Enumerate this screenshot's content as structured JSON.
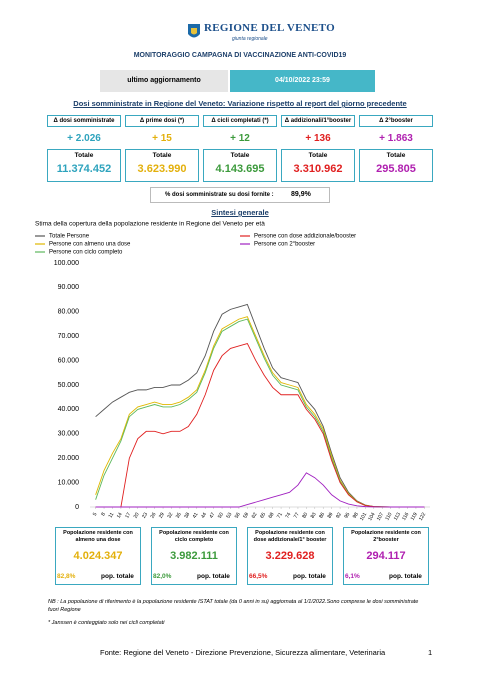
{
  "header": {
    "logo": "REGIONE DEL VENETO",
    "logo_sub": "giunta regionale",
    "title": "MONITORAGGIO CAMPAGNA DI VACCINAZIONE ANTI-COVID19",
    "update_label": "ultimo aggiornamento",
    "update_date": "04/10/2022 23:59"
  },
  "summary": {
    "title": "Dosi somministrate in Regione del Veneto: Variazione rispetto al report del giorno precedente",
    "cards": [
      {
        "label": "Δ dosi somministrate",
        "delta": "+ 2.026",
        "total_label": "Totale",
        "total": "11.374.452",
        "color": "#2ea3bd"
      },
      {
        "label": "Δ prime dosi (*)",
        "delta": "+ 15",
        "total_label": "Totale",
        "total": "3.623.990",
        "color": "#e3b00c"
      },
      {
        "label": "Δ cicli completati (*)",
        "delta": "+ 12",
        "total_label": "Totale",
        "total": "4.143.695",
        "color": "#3c9a3c"
      },
      {
        "label": "Δ addizionali/1°booster",
        "delta": "+ 136",
        "total_label": "Totale",
        "total": "3.310.962",
        "color": "#e02020"
      },
      {
        "label": "Δ 2°booster",
        "delta": "+ 1.863",
        "total_label": "Totale",
        "total": "295.805",
        "color": "#b020b0"
      }
    ]
  },
  "ratio": {
    "label": "% dosi somministrate su dosi fornite :",
    "value": "89,9%"
  },
  "section_title": "Sintesi generale",
  "chart_data": {
    "type": "line",
    "title": "Stima della copertura della popolazione residente in Regione del Veneto per età",
    "x": [
      5,
      8,
      11,
      14,
      17,
      20,
      23,
      26,
      29,
      32,
      35,
      38,
      41,
      44,
      47,
      50,
      53,
      56,
      59,
      62,
      65,
      68,
      71,
      74,
      77,
      80,
      83,
      86,
      89,
      92,
      95,
      98,
      101,
      104,
      107,
      110,
      113,
      116,
      119,
      122
    ],
    "xlim": [
      3,
      124
    ],
    "xticks": [
      5,
      8,
      11,
      14,
      17,
      20,
      23,
      26,
      29,
      32,
      35,
      38,
      41,
      44,
      47,
      50,
      53,
      56,
      59,
      62,
      65,
      68,
      71,
      74,
      77,
      80,
      83,
      86,
      89,
      92,
      95,
      98,
      101,
      104,
      107,
      110,
      113,
      116,
      119,
      122
    ],
    "ylim": [
      0,
      100000
    ],
    "yticks": [
      0,
      {
        "value": 10000,
        "label": "10.000"
      },
      {
        "value": 20000,
        "label": "20.000"
      },
      {
        "value": 30000,
        "label": "30.000"
      },
      {
        "value": 40000,
        "label": "40.000"
      },
      {
        "value": 50000,
        "label": "50.000"
      },
      {
        "value": 60000,
        "label": "60.000"
      },
      {
        "value": 70000,
        "label": "70.000"
      },
      {
        "value": 80000,
        "label": "80.000"
      },
      {
        "value": 90000,
        "label": "90.000"
      },
      {
        "value": 100000,
        "label": "100.000"
      }
    ],
    "series": [
      {
        "name": "Totale Persone",
        "color": "#555555",
        "values": [
          37000,
          40000,
          43000,
          45000,
          47000,
          48000,
          48000,
          49000,
          49000,
          50000,
          50000,
          52000,
          55000,
          62000,
          72000,
          79000,
          81000,
          82000,
          83000,
          74000,
          65000,
          57000,
          53000,
          52000,
          51000,
          44000,
          40000,
          33000,
          22000,
          12000,
          6000,
          2500,
          800,
          200,
          80,
          20,
          5,
          2,
          1,
          1
        ]
      },
      {
        "name": "Persone con almeno una dose",
        "color": "#e0b800",
        "values": [
          5000,
          15000,
          22000,
          28000,
          38000,
          41000,
          42000,
          43000,
          42000,
          42000,
          43000,
          45000,
          48000,
          56000,
          66000,
          73000,
          75000,
          77000,
          78000,
          70000,
          62000,
          55000,
          51000,
          50000,
          49000,
          42000,
          38000,
          32000,
          21000,
          11000,
          5500,
          2300,
          700,
          180,
          70,
          18,
          4,
          2,
          1,
          0
        ]
      },
      {
        "name": "Persone con ciclo completo",
        "color": "#5cb85c",
        "values": [
          3000,
          13000,
          20000,
          27000,
          37000,
          40000,
          41000,
          42000,
          41000,
          41000,
          42000,
          44000,
          47000,
          55000,
          65000,
          72000,
          74000,
          76000,
          77000,
          69000,
          61000,
          54000,
          50000,
          49000,
          48000,
          41000,
          37000,
          31000,
          20000,
          10500,
          5200,
          2200,
          650,
          170,
          65,
          16,
          4,
          2,
          1,
          0
        ]
      },
      {
        "name": "Persone con dose addizionale/booster",
        "color": "#e02020",
        "values": [
          0,
          0,
          0,
          0,
          20000,
          28000,
          31000,
          31000,
          30000,
          31000,
          31000,
          33000,
          38000,
          46000,
          56000,
          62000,
          65000,
          66000,
          67000,
          60000,
          54000,
          49000,
          46000,
          46000,
          46000,
          40000,
          36000,
          30000,
          19000,
          10000,
          5000,
          2100,
          600,
          150,
          60,
          15,
          3,
          1,
          0,
          0
        ]
      },
      {
        "name": "Persone con 2°booster",
        "color": "#a020c0",
        "values": [
          0,
          0,
          0,
          0,
          0,
          0,
          0,
          0,
          0,
          0,
          0,
          0,
          0,
          0,
          0,
          0,
          0,
          0,
          1000,
          2000,
          3000,
          4000,
          5000,
          6000,
          9000,
          14000,
          12000,
          9000,
          5000,
          2500,
          1200,
          500,
          150,
          40,
          15,
          4,
          1,
          0,
          0,
          0
        ]
      }
    ]
  },
  "population": [
    {
      "label": "Popolazione residente con almeno una dose",
      "value": "4.024.347",
      "percent": "82,8%",
      "percent_label": "pop. totale",
      "color": "#e3b00c"
    },
    {
      "label": "Popolazione residente con ciclo completo",
      "value": "3.982.111",
      "percent": "82,0%",
      "percent_label": "pop. totale",
      "color": "#3c9a3c"
    },
    {
      "label": "Popolazione residente con dose addizionale/1° booster",
      "value": "3.229.628",
      "percent": "66,5%",
      "percent_label": "pop. totale",
      "color": "#e02020"
    },
    {
      "label": "Popolazione residente con 2°booster",
      "value": "294.117",
      "percent": "6,1%",
      "percent_label": "pop. totale",
      "color": "#b020b0"
    }
  ],
  "notes": [
    "NB : La popolazione di riferimento è la popolazione residente ISTAT totale (da 0 anni in su) aggiornata  al 1/1/2022.Sono comprese le dosi somministrate fuori Regione",
    "* Janssen è conteggiato solo nei cicli completati"
  ],
  "footer": {
    "text": "Fonte: Regione del Veneto - Direzione Prevenzione, Sicurezza alimentare, Veterinaria",
    "page": "1"
  }
}
